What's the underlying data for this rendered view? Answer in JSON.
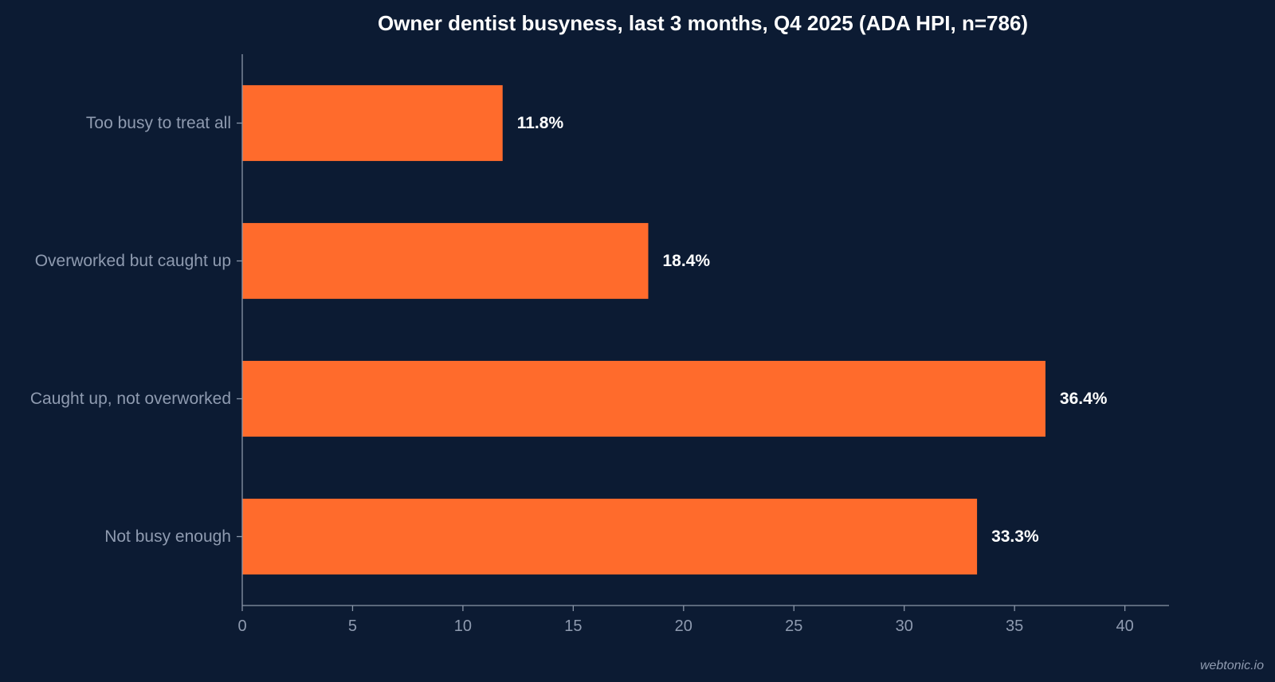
{
  "colors": {
    "background": "#0c1b33",
    "bar": "#ff6b2c",
    "axis": "#8a96a8",
    "label_text": "#8f9bb0",
    "value_text": "#ffffff",
    "title_text": "#ffffff",
    "watermark_text": "#8f9bb0"
  },
  "watermark": "webtonic.io",
  "chart_data": {
    "type": "bar",
    "orientation": "horizontal",
    "title": "Owner dentist busyness, last 3 months, Q4 2025 (ADA HPI, n=786)",
    "xlabel": "",
    "ylabel": "",
    "categories": [
      "Too busy to treat all",
      "Overworked but caught up",
      "Caught up, not overworked",
      "Not busy enough"
    ],
    "values": [
      11.8,
      18.4,
      36.4,
      33.3
    ],
    "value_labels": [
      "11.8%",
      "18.4%",
      "36.4%",
      "33.3%"
    ],
    "xlim": [
      0,
      42
    ],
    "xticks": [
      0,
      5,
      10,
      15,
      20,
      25,
      30,
      35,
      40
    ],
    "xtick_labels": [
      "0",
      "5",
      "10",
      "15",
      "20",
      "25",
      "30",
      "35",
      "40"
    ],
    "grid": false,
    "legend": "none"
  }
}
